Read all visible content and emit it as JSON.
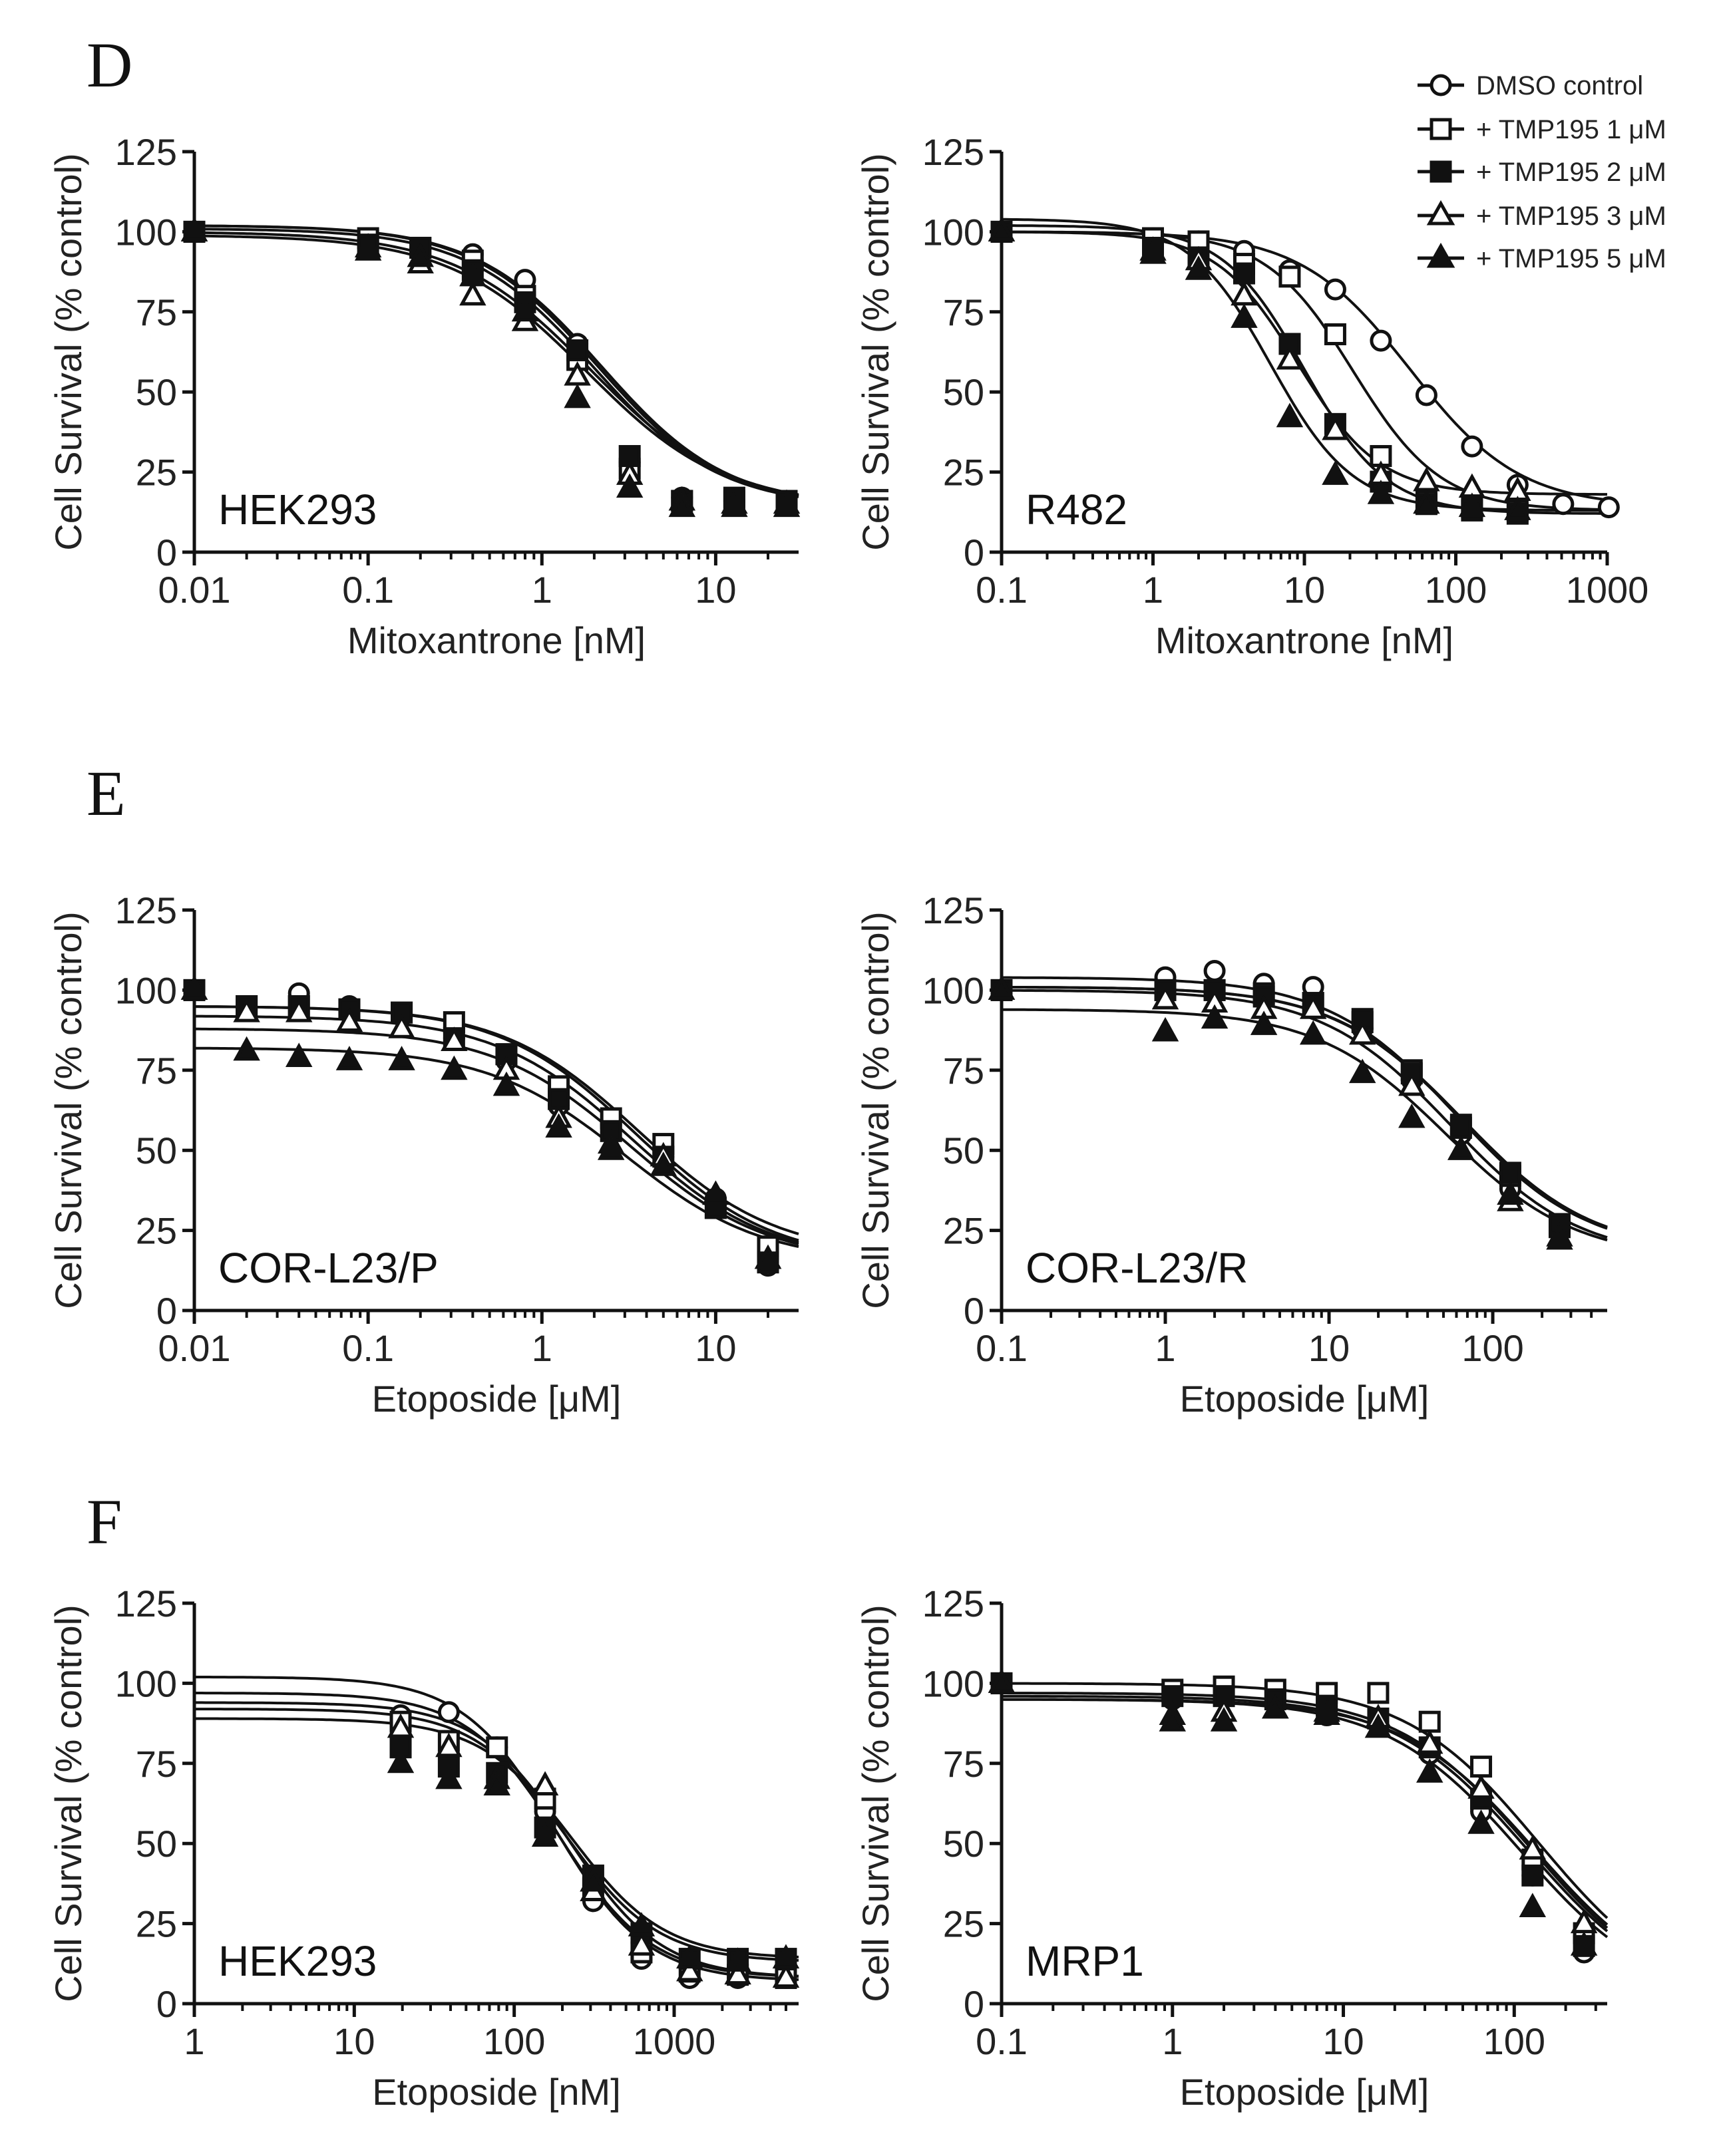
{
  "panel_letters": [
    "D",
    "E",
    "F"
  ],
  "legend": {
    "entries": [
      {
        "label": "DMSO control",
        "marker": "circle-open"
      },
      {
        "label": "+ TMP195 1 μM",
        "marker": "square-open"
      },
      {
        "label": "+ TMP195 2 μM",
        "marker": "square-filled"
      },
      {
        "label": "+ TMP195 3 μM",
        "marker": "triangle-open"
      },
      {
        "label": "+ TMP195 5 μM",
        "marker": "triangle-filled"
      }
    ]
  },
  "chart_data": [
    {
      "id": "D-left",
      "type": "scatter",
      "panel": "D",
      "cell_label": "HEK293",
      "xlabel": "Mitoxantrone [nM]",
      "ylabel": "Cell Survival (% control)",
      "xscale": "log",
      "xlim": [
        0.01,
        30
      ],
      "ylim": [
        0,
        125
      ],
      "xticks": [
        0.01,
        0.1,
        1,
        10
      ],
      "xtick_labels": [
        "0.01",
        "0.1",
        "1",
        "10"
      ],
      "yticks": [
        0,
        25,
        50,
        75,
        100,
        125
      ],
      "ytick_labels": [
        "0",
        "25",
        "50",
        "75",
        "100",
        "125"
      ],
      "x": [
        0.01,
        0.1,
        0.2,
        0.4,
        0.8,
        1.6,
        3.2,
        6.4,
        12.8,
        25.6
      ],
      "series": [
        {
          "name": "DMSO control",
          "marker": "circle-open",
          "values": [
            100,
            97,
            95,
            93,
            85,
            65,
            28,
            17,
            16,
            15
          ],
          "fit": {
            "top": 102,
            "bottom": 14,
            "ec50": 2.2,
            "hill": 1.2
          }
        },
        {
          "name": "+ TMP195 1 μM",
          "marker": "square-open",
          "values": [
            100,
            98,
            95,
            91,
            80,
            60,
            26,
            16,
            16,
            15
          ],
          "fit": {
            "top": 102,
            "bottom": 14,
            "ec50": 2.1,
            "hill": 1.2
          }
        },
        {
          "name": "+ TMP195 2 μM",
          "marker": "square-filled",
          "values": [
            100,
            96,
            95,
            88,
            78,
            63,
            30,
            16,
            17,
            16
          ],
          "fit": {
            "top": 101,
            "bottom": 14,
            "ec50": 2.0,
            "hill": 1.2
          }
        },
        {
          "name": "+ TMP195 3 μM",
          "marker": "triangle-open",
          "values": [
            100,
            95,
            90,
            80,
            72,
            55,
            24,
            16,
            15,
            15
          ],
          "fit": {
            "top": 100,
            "bottom": 14,
            "ec50": 1.9,
            "hill": 1.1
          }
        },
        {
          "name": "+ TMP195 5 μM",
          "marker": "triangle-filled",
          "values": [
            100,
            94,
            92,
            86,
            75,
            48,
            20,
            14,
            14,
            14
          ],
          "fit": {
            "top": 99,
            "bottom": 14,
            "ec50": 1.8,
            "hill": 1.1
          }
        }
      ]
    },
    {
      "id": "D-right",
      "type": "scatter",
      "panel": "D",
      "cell_label": "R482",
      "xlabel": "Mitoxantrone [nM]",
      "ylabel": "Cell Survival (% control)",
      "xscale": "log",
      "xlim": [
        0.1,
        1000
      ],
      "ylim": [
        0,
        125
      ],
      "xticks": [
        0.1,
        1,
        10,
        100,
        1000
      ],
      "xtick_labels": [
        "0.1",
        "1",
        "10",
        "100",
        "1000"
      ],
      "yticks": [
        0,
        25,
        50,
        75,
        100,
        125
      ],
      "ytick_labels": [
        "0",
        "25",
        "50",
        "75",
        "100",
        "125"
      ],
      "x": [
        0.1,
        1,
        2,
        4,
        8,
        16,
        32,
        64,
        128,
        256,
        512,
        1024
      ],
      "series": [
        {
          "name": "DMSO control",
          "marker": "circle-open",
          "x": [
            0.1,
            1,
            2,
            4,
            8,
            16,
            32,
            64,
            128,
            256,
            512,
            1024
          ],
          "values": [
            100,
            98,
            97,
            94,
            88,
            82,
            66,
            49,
            33,
            21,
            15,
            14
          ],
          "fit": {
            "top": 100,
            "bottom": 14,
            "ec50": 50,
            "hill": 1.2
          }
        },
        {
          "name": "+ TMP195 1 μM",
          "marker": "square-open",
          "x": [
            0.1,
            1,
            2,
            4,
            8,
            16,
            32,
            64,
            128,
            256
          ],
          "values": [
            100,
            98,
            97,
            90,
            86,
            68,
            30,
            16,
            14,
            13
          ],
          "fit": {
            "top": 100,
            "bottom": 13,
            "ec50": 21,
            "hill": 1.5
          }
        },
        {
          "name": "+ TMP195 2 μM",
          "marker": "square-filled",
          "x": [
            0.1,
            1,
            2,
            4,
            8,
            16,
            32,
            64,
            128,
            256
          ],
          "values": [
            100,
            95,
            92,
            87,
            65,
            40,
            22,
            15,
            13,
            12
          ],
          "fit": {
            "top": 102,
            "bottom": 12,
            "ec50": 10,
            "hill": 1.6
          }
        },
        {
          "name": "+ TMP195 3 μM",
          "marker": "triangle-open",
          "x": [
            0.1,
            1,
            2,
            4,
            8,
            16,
            32,
            64,
            128,
            256
          ],
          "values": [
            100,
            94,
            91,
            80,
            60,
            38,
            24,
            22,
            20,
            19
          ],
          "fit": {
            "top": 100,
            "bottom": 18,
            "ec50": 9,
            "hill": 1.6
          }
        },
        {
          "name": "+ TMP195 5 μM",
          "marker": "triangle-filled",
          "x": [
            0.1,
            1,
            2,
            4,
            8,
            16,
            32,
            64,
            128,
            256
          ],
          "values": [
            100,
            93,
            88,
            73,
            42,
            24,
            18,
            15,
            14,
            13
          ],
          "fit": {
            "top": 104,
            "bottom": 13,
            "ec50": 6,
            "hill": 1.6
          }
        }
      ]
    },
    {
      "id": "E-left",
      "type": "scatter",
      "panel": "E",
      "cell_label": "COR-L23/P",
      "xlabel": "Etoposide [μM]",
      "ylabel": "Cell Survival (% control)",
      "xscale": "log",
      "xlim": [
        0.01,
        30
      ],
      "ylim": [
        0,
        125
      ],
      "xticks": [
        0.01,
        0.1,
        1,
        10
      ],
      "xtick_labels": [
        "0.01",
        "0.1",
        "1",
        "10"
      ],
      "yticks": [
        0,
        25,
        50,
        75,
        100,
        125
      ],
      "ytick_labels": [
        "0",
        "25",
        "50",
        "75",
        "100",
        "125"
      ],
      "x": [
        0.01,
        0.02,
        0.04,
        0.078,
        0.156,
        0.3125,
        0.625,
        1.25,
        2.5,
        5,
        10,
        20
      ],
      "series": [
        {
          "name": "DMSO control",
          "marker": "circle-open",
          "values": [
            100,
            94,
            99,
            95,
            92,
            85,
            78,
            64,
            58,
            48,
            35,
            14
          ],
          "fit": {
            "top": 95,
            "bottom": 15,
            "ec50": 3.5,
            "hill": 1.1
          }
        },
        {
          "name": "+ TMP195 1 μM",
          "marker": "square-open",
          "values": [
            100,
            95,
            95,
            94,
            93,
            90,
            80,
            70,
            60,
            52,
            32,
            20
          ],
          "fit": {
            "top": 95,
            "bottom": 17,
            "ec50": 3.6,
            "hill": 1.1
          }
        },
        {
          "name": "+ TMP195 2 μM",
          "marker": "square-filled",
          "values": [
            100,
            95,
            95,
            94,
            93,
            85,
            80,
            66,
            56,
            48,
            32,
            15
          ],
          "fit": {
            "top": 92,
            "bottom": 15,
            "ec50": 3.3,
            "hill": 1.1
          }
        },
        {
          "name": "+ TMP195 3 μM",
          "marker": "triangle-open",
          "values": [
            100,
            93,
            93,
            90,
            88,
            84,
            75,
            60,
            52,
            48,
            36,
            16
          ],
          "fit": {
            "top": 88,
            "bottom": 15,
            "ec50": 3.2,
            "hill": 1.1
          }
        },
        {
          "name": "+ TMP195 5 μM",
          "marker": "triangle-filled",
          "values": [
            100,
            81,
            79,
            78,
            78,
            75,
            70,
            57,
            50,
            45,
            36,
            16
          ],
          "fit": {
            "top": 82,
            "bottom": 15,
            "ec50": 3.0,
            "hill": 1.1
          }
        }
      ]
    },
    {
      "id": "E-right",
      "type": "scatter",
      "panel": "E",
      "cell_label": "COR-L23/R",
      "xlabel": "Etoposide [μM]",
      "ylabel": "Cell Survival (% control)",
      "xscale": "log",
      "xlim": [
        0.1,
        500
      ],
      "ylim": [
        0,
        125
      ],
      "xticks": [
        0.1,
        1,
        10,
        100
      ],
      "xtick_labels": [
        "0.1",
        "1",
        "10",
        "100"
      ],
      "yticks": [
        0,
        25,
        50,
        75,
        100,
        125
      ],
      "ytick_labels": [
        "0",
        "25",
        "50",
        "75",
        "100",
        "125"
      ],
      "x": [
        0.1,
        1,
        2,
        4,
        8,
        16,
        32,
        64,
        128,
        256
      ],
      "series": [
        {
          "name": "DMSO control",
          "marker": "circle-open",
          "values": [
            100,
            104,
            106,
            102,
            101,
            88,
            72,
            55,
            38,
            25
          ],
          "fit": {
            "top": 104,
            "bottom": 18,
            "ec50": 60,
            "hill": 1.1
          }
        },
        {
          "name": "+ TMP195 1 μM",
          "marker": "square-open",
          "values": [
            100,
            100,
            100,
            99,
            96,
            90,
            75,
            58,
            42,
            26
          ],
          "fit": {
            "top": 101,
            "bottom": 18,
            "ec50": 65,
            "hill": 1.1
          }
        },
        {
          "name": "+ TMP195 2 μM",
          "marker": "square-filled",
          "values": [
            100,
            100,
            100,
            98,
            96,
            91,
            74,
            57,
            43,
            27
          ],
          "fit": {
            "top": 101,
            "bottom": 18,
            "ec50": 66,
            "hill": 1.1
          }
        },
        {
          "name": "+ TMP195 3 μM",
          "marker": "triangle-open",
          "values": [
            100,
            97,
            96,
            94,
            94,
            86,
            70,
            50,
            34,
            23
          ],
          "fit": {
            "top": 100,
            "bottom": 16,
            "ec50": 55,
            "hill": 1.1
          }
        },
        {
          "name": "+ TMP195 5 μM",
          "marker": "triangle-filled",
          "values": [
            100,
            87,
            91,
            89,
            86,
            74,
            60,
            50,
            36,
            22
          ],
          "fit": {
            "top": 94,
            "bottom": 16,
            "ec50": 52,
            "hill": 1.1
          }
        }
      ]
    },
    {
      "id": "F-left",
      "type": "scatter",
      "panel": "F",
      "cell_label": "HEK293",
      "xlabel": "Etoposide [nM]",
      "ylabel": "Cell Survival (% control)",
      "xscale": "log",
      "xlim": [
        1,
        6000
      ],
      "ylim": [
        0,
        125
      ],
      "xticks": [
        1,
        10,
        100,
        1000
      ],
      "xtick_labels": [
        "1",
        "10",
        "100",
        "1000"
      ],
      "yticks": [
        0,
        25,
        50,
        75,
        100,
        125
      ],
      "ytick_labels": [
        "0",
        "25",
        "50",
        "75",
        "100",
        "125"
      ],
      "x": [
        19.5,
        39,
        78,
        156,
        312,
        625,
        1250,
        2500,
        5000
      ],
      "series": [
        {
          "name": "DMSO control",
          "marker": "circle-open",
          "values": [
            90,
            91,
            80,
            60,
            32,
            14,
            8,
            8,
            8
          ],
          "fit": {
            "top": 102,
            "bottom": 7,
            "ec50": 180,
            "hill": 1.5
          }
        },
        {
          "name": "+ TMP195 1 μM",
          "marker": "square-open",
          "values": [
            88,
            82,
            80,
            64,
            36,
            16,
            10,
            9,
            8
          ],
          "fit": {
            "top": 97,
            "bottom": 8,
            "ec50": 190,
            "hill": 1.5
          }
        },
        {
          "name": "+ TMP195 2 μM",
          "marker": "square-filled",
          "values": [
            80,
            74,
            72,
            55,
            40,
            22,
            14,
            14,
            14
          ],
          "fit": {
            "top": 92,
            "bottom": 13,
            "ec50": 210,
            "hill": 1.5
          }
        },
        {
          "name": "+ TMP195 3 μM",
          "marker": "triangle-open",
          "values": [
            86,
            80,
            70,
            68,
            35,
            18,
            10,
            9,
            8
          ],
          "fit": {
            "top": 94,
            "bottom": 8,
            "ec50": 220,
            "hill": 1.5
          }
        },
        {
          "name": "+ TMP195 5 μM",
          "marker": "triangle-filled",
          "values": [
            75,
            70,
            68,
            52,
            38,
            24,
            14,
            13,
            14
          ],
          "fit": {
            "top": 89,
            "bottom": 14,
            "ec50": 230,
            "hill": 1.5
          }
        }
      ]
    },
    {
      "id": "F-right",
      "type": "scatter",
      "panel": "F",
      "cell_label": "MRP1",
      "xlabel": "Etoposide [μM]",
      "ylabel": "Cell Survival (% control)",
      "xscale": "log",
      "xlim": [
        0.1,
        350
      ],
      "ylim": [
        0,
        125
      ],
      "xticks": [
        0.1,
        1,
        10,
        100
      ],
      "xtick_labels": [
        "0.1",
        "1",
        "10",
        "100"
      ],
      "yticks": [
        0,
        25,
        50,
        75,
        100,
        125
      ],
      "ytick_labels": [
        "0",
        "25",
        "50",
        "75",
        "100",
        "125"
      ],
      "x": [
        0.1,
        1,
        2,
        4,
        8,
        16,
        32,
        64,
        128,
        256
      ],
      "series": [
        {
          "name": "DMSO control",
          "marker": "circle-open",
          "values": [
            100,
            95,
            96,
            95,
            90,
            88,
            78,
            60,
            40,
            16
          ],
          "fit": {
            "top": 96,
            "bottom": 0,
            "ec50": 120,
            "hill": 1.1
          }
        },
        {
          "name": "+ TMP195 1 μM",
          "marker": "square-open",
          "values": [
            100,
            98,
            99,
            98,
            97,
            97,
            88,
            74,
            45,
            22
          ],
          "fit": {
            "top": 100,
            "bottom": 0,
            "ec50": 140,
            "hill": 1.1
          }
        },
        {
          "name": "+ TMP195 2 μM",
          "marker": "square-filled",
          "values": [
            100,
            96,
            96,
            95,
            93,
            89,
            80,
            64,
            40,
            18
          ],
          "fit": {
            "top": 97,
            "bottom": 0,
            "ec50": 125,
            "hill": 1.1
          }
        },
        {
          "name": "+ TMP195 3 μM",
          "marker": "triangle-open",
          "values": [
            100,
            90,
            91,
            92,
            91,
            89,
            81,
            67,
            48,
            25
          ],
          "fit": {
            "top": 95,
            "bottom": 0,
            "ec50": 135,
            "hill": 1.1
          }
        },
        {
          "name": "+ TMP195 5 μM",
          "marker": "triangle-filled",
          "values": [
            100,
            88,
            88,
            92,
            90,
            86,
            72,
            56,
            30,
            18
          ],
          "fit": {
            "top": 95,
            "bottom": 0,
            "ec50": 110,
            "hill": 1.1
          }
        }
      ]
    }
  ]
}
